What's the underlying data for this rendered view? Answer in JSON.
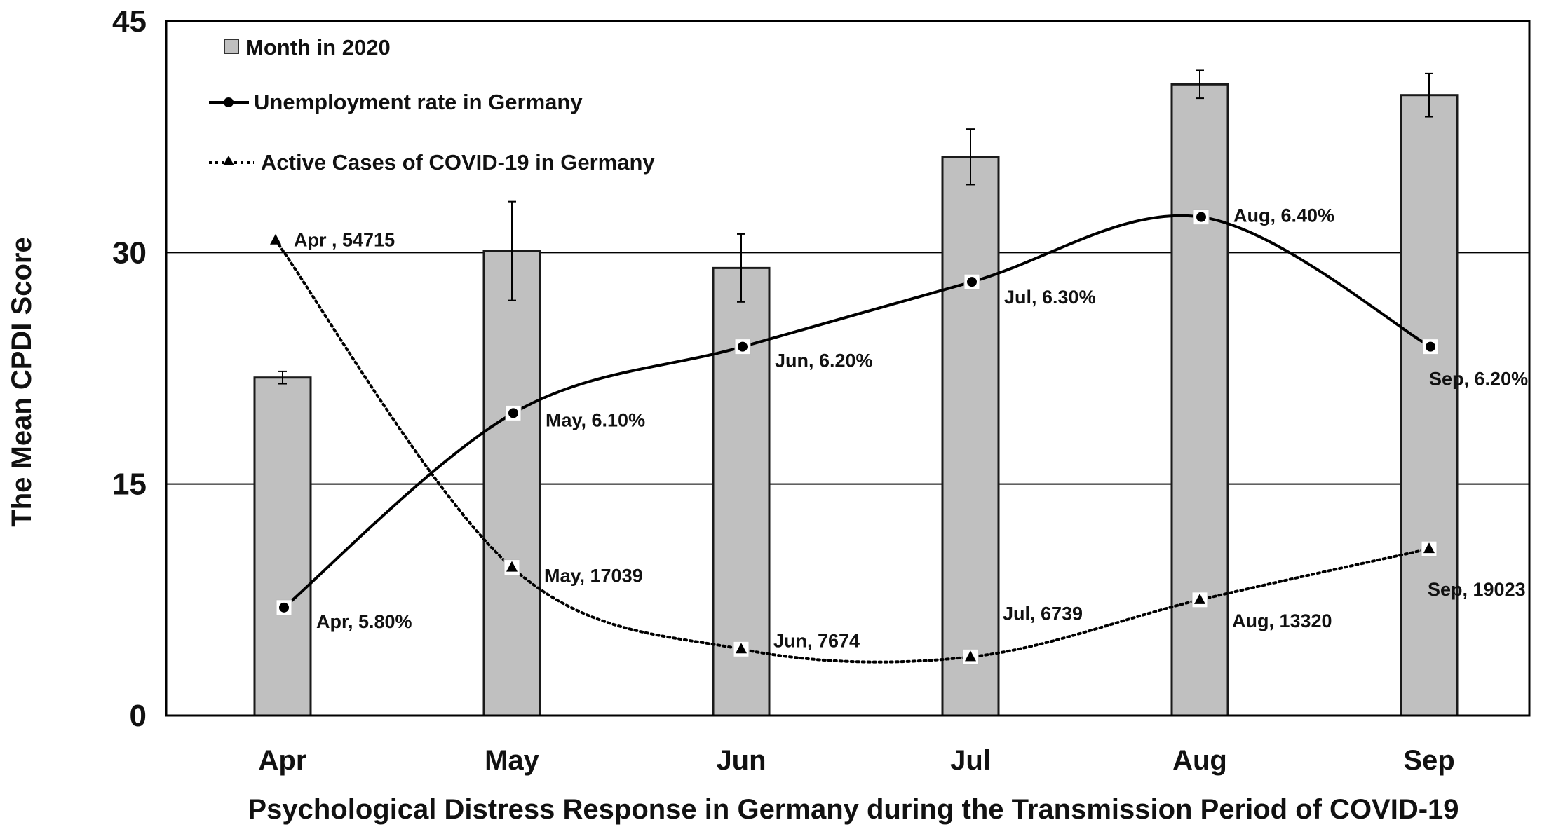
{
  "chart_data": {
    "type": "bar",
    "title": "",
    "xlabel": "Psychological Distress Response in Germany during the Transmission Period of COVID-19",
    "ylabel": "The Mean CPDI Score",
    "ylim": [
      0,
      45
    ],
    "yticks": [
      "0",
      "15",
      "30",
      "45"
    ],
    "categories": [
      "Apr",
      "May",
      "Jun",
      "Jul",
      "Aug",
      "Sep"
    ],
    "grid": true,
    "legend_position": "top-left",
    "series": [
      {
        "name": "Month in 2020",
        "kind": "bar",
        "values": [
          21.9,
          30.1,
          29.0,
          36.2,
          40.9,
          40.2
        ],
        "error": [
          0.4,
          3.2,
          2.2,
          1.8,
          0.9,
          1.4
        ]
      },
      {
        "name": "Unemployment rate in Germany",
        "kind": "line",
        "values": [
          5.8,
          6.1,
          6.2,
          6.3,
          6.4,
          6.2
        ],
        "plot_values": [
          7.0,
          19.6,
          23.9,
          28.1,
          32.3,
          23.9
        ],
        "labels": [
          "Apr, 5.80%",
          "May, 6.10%",
          "Jun, 6.20%",
          "Jul, 6.30%",
          "Aug, 6.40%",
          "Sep, 6.20%"
        ]
      },
      {
        "name": "Active Cases of COVID-19 in Germany",
        "kind": "line-dotted",
        "values": [
          54715,
          17039,
          7674,
          6739,
          13320,
          19023
        ],
        "plot_values": [
          30.8,
          9.6,
          4.3,
          3.8,
          7.5,
          10.8
        ],
        "labels": [
          "Apr , 54715",
          "May, 17039",
          "Jun, 7674",
          "Jul, 6739",
          "Aug, 13320",
          "Sep, 19023"
        ]
      }
    ]
  }
}
